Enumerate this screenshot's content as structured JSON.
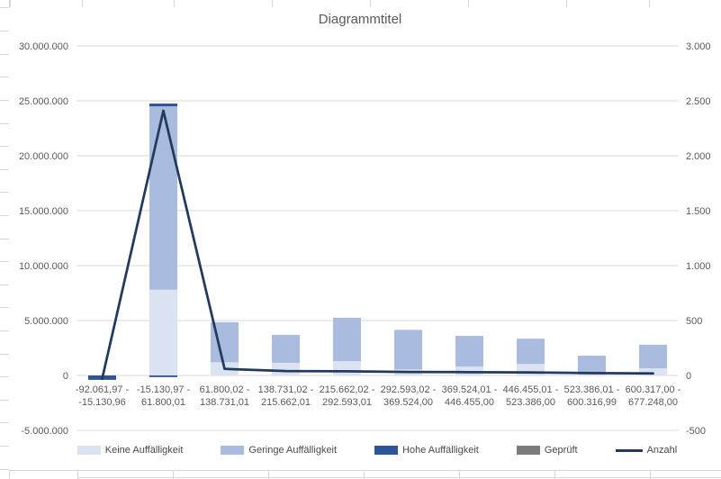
{
  "chart_data": {
    "type": "combo-stacked-bar-line",
    "title": "Diagrammtitel",
    "categories": [
      [
        "-92.061,97 -",
        "-15.130,96"
      ],
      [
        "-15.130,97 -",
        "61.800,01"
      ],
      [
        "61.800,02 -",
        "138.731,01"
      ],
      [
        "138.731,02 -",
        "215.662,01"
      ],
      [
        "215.662,02 -",
        "292.593,01"
      ],
      [
        "292.593,02 -",
        "369.524,00"
      ],
      [
        "369.524,01 -",
        "446.455,00"
      ],
      [
        "446.455,01 -",
        "523.386,00"
      ],
      [
        "523.386,01 -",
        "600.316,99"
      ],
      [
        "600.317,00 -",
        "677.248,00"
      ]
    ],
    "series": [
      {
        "name": "Keine Auffälligkeit",
        "type": "bar",
        "color": "#dbe3f3",
        "values": [
          0,
          7800000,
          1200000,
          1150000,
          1300000,
          550000,
          800000,
          1050000,
          100000,
          650000
        ]
      },
      {
        "name": "Geringe Auffälligkeit",
        "type": "bar",
        "color": "#a9bcdf",
        "values": [
          0,
          16700000,
          3650000,
          2550000,
          3950000,
          3600000,
          2800000,
          2300000,
          1700000,
          2150000
        ]
      },
      {
        "name": "Hohe Auffälligkeit",
        "type": "bar",
        "color": "#2e5597",
        "values": [
          0,
          250000,
          0,
          0,
          0,
          0,
          0,
          0,
          0,
          0
        ],
        "negative_values": [
          -400000,
          -150000,
          0,
          0,
          0,
          0,
          0,
          0,
          0,
          0
        ]
      },
      {
        "name": "Geprüft",
        "type": "bar",
        "color": "#7b7b7b",
        "values": [
          0,
          0,
          0,
          0,
          0,
          0,
          0,
          0,
          0,
          0
        ]
      }
    ],
    "line_series": {
      "name": "Anzahl",
      "type": "line",
      "axis": "right",
      "color": "#223a5e",
      "values": [
        -30,
        2410,
        60,
        40,
        38,
        32,
        30,
        28,
        22,
        18
      ]
    },
    "left_axis": {
      "min": -5000000,
      "max": 30000000,
      "step": 5000000,
      "tick_labels": [
        "30.000.000",
        "25.000.000",
        "20.000.000",
        "15.000.000",
        "10.000.000",
        "5.000.000",
        "0",
        "-5.000.000"
      ]
    },
    "right_axis": {
      "min": -500,
      "max": 3000,
      "step": 500,
      "tick_labels": [
        "3.000",
        "2.500",
        "2.000",
        "1.500",
        "1.000",
        "500",
        "0",
        "-500"
      ]
    },
    "legend_position": "bottom",
    "grid": true,
    "colors": {
      "gridline": "#d9d9d9",
      "axis_text": "#595959",
      "title_text": "#595959",
      "worksheet_grid": "#d6d6d6"
    }
  }
}
